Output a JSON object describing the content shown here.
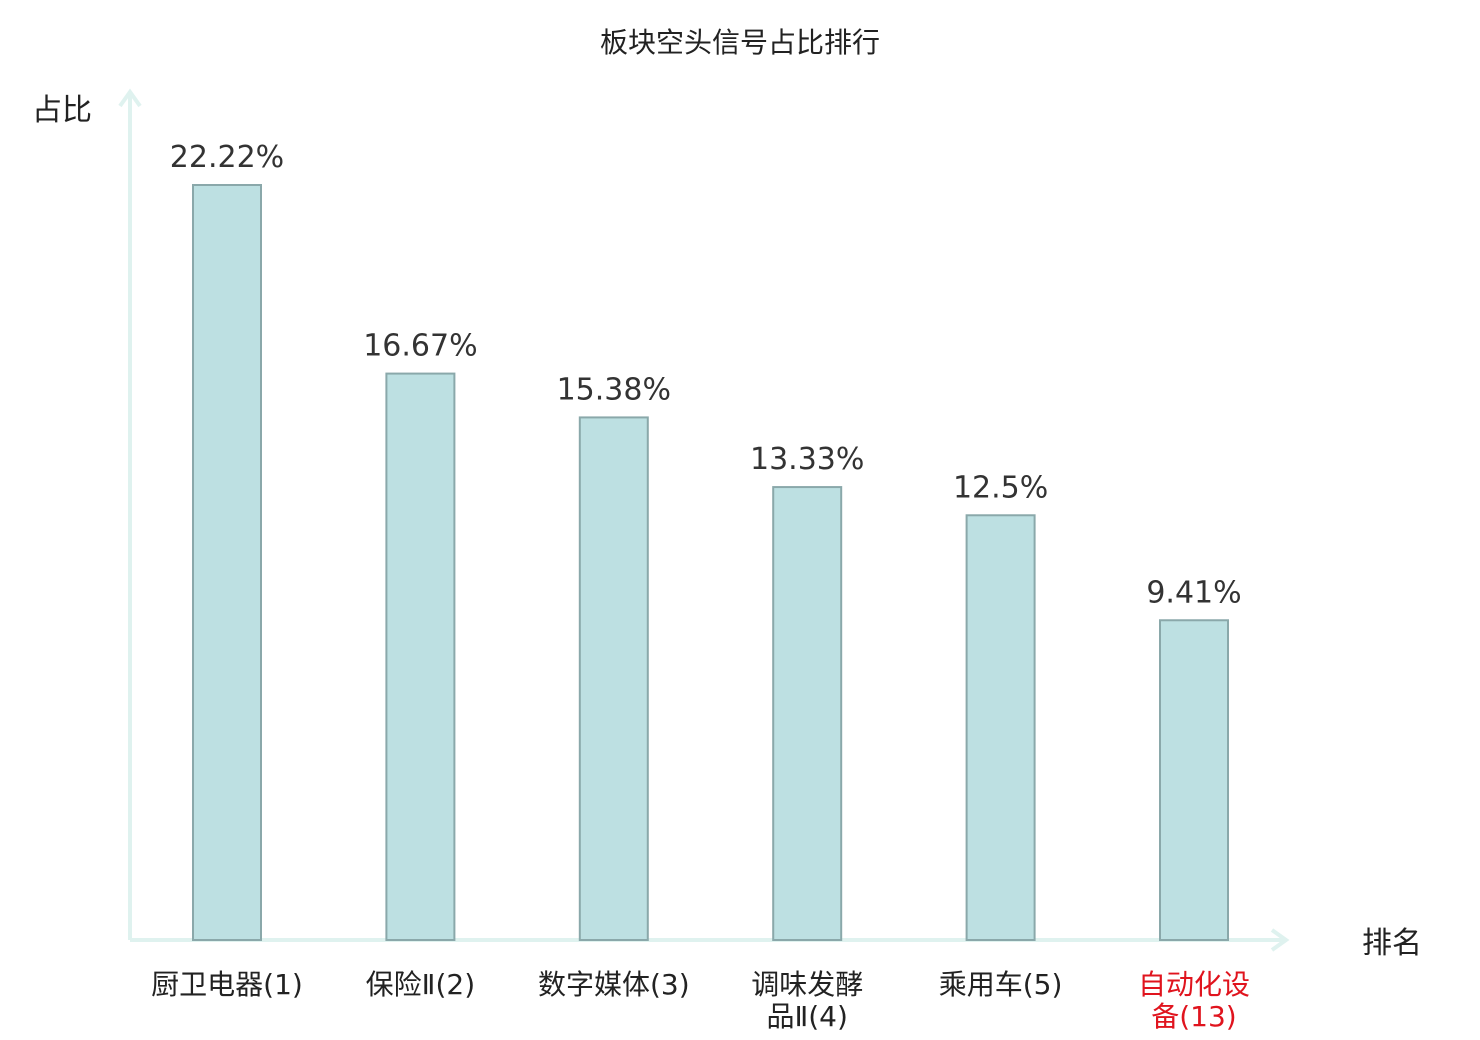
{
  "chart_data": {
    "type": "bar",
    "title": "板块空头信号占比排行",
    "ylabel": "占比",
    "xlabel": "排名",
    "categories": [
      [
        "厨卫电器(1)"
      ],
      [
        "保险Ⅱ(2)"
      ],
      [
        "数字媒体(3)"
      ],
      [
        "调味发酵",
        "品Ⅱ(4)"
      ],
      [
        "乘用车(5)"
      ],
      [
        "自动化设",
        "备(13)"
      ]
    ],
    "values": [
      22.22,
      16.67,
      15.38,
      13.33,
      12.5,
      9.41
    ],
    "value_labels": [
      "22.22%",
      "16.67%",
      "15.38%",
      "13.33%",
      "12.5%",
      "9.41%"
    ],
    "highlight_index": 5,
    "ylim": [
      0,
      22.22
    ],
    "grid": false,
    "colors": {
      "bar_fill": "#bde0e2",
      "bar_stroke": "#8aa8aa",
      "axis": "#dff2ef",
      "text": "#222222",
      "value_text": "#333333",
      "highlight_text": "#e0141e"
    }
  }
}
